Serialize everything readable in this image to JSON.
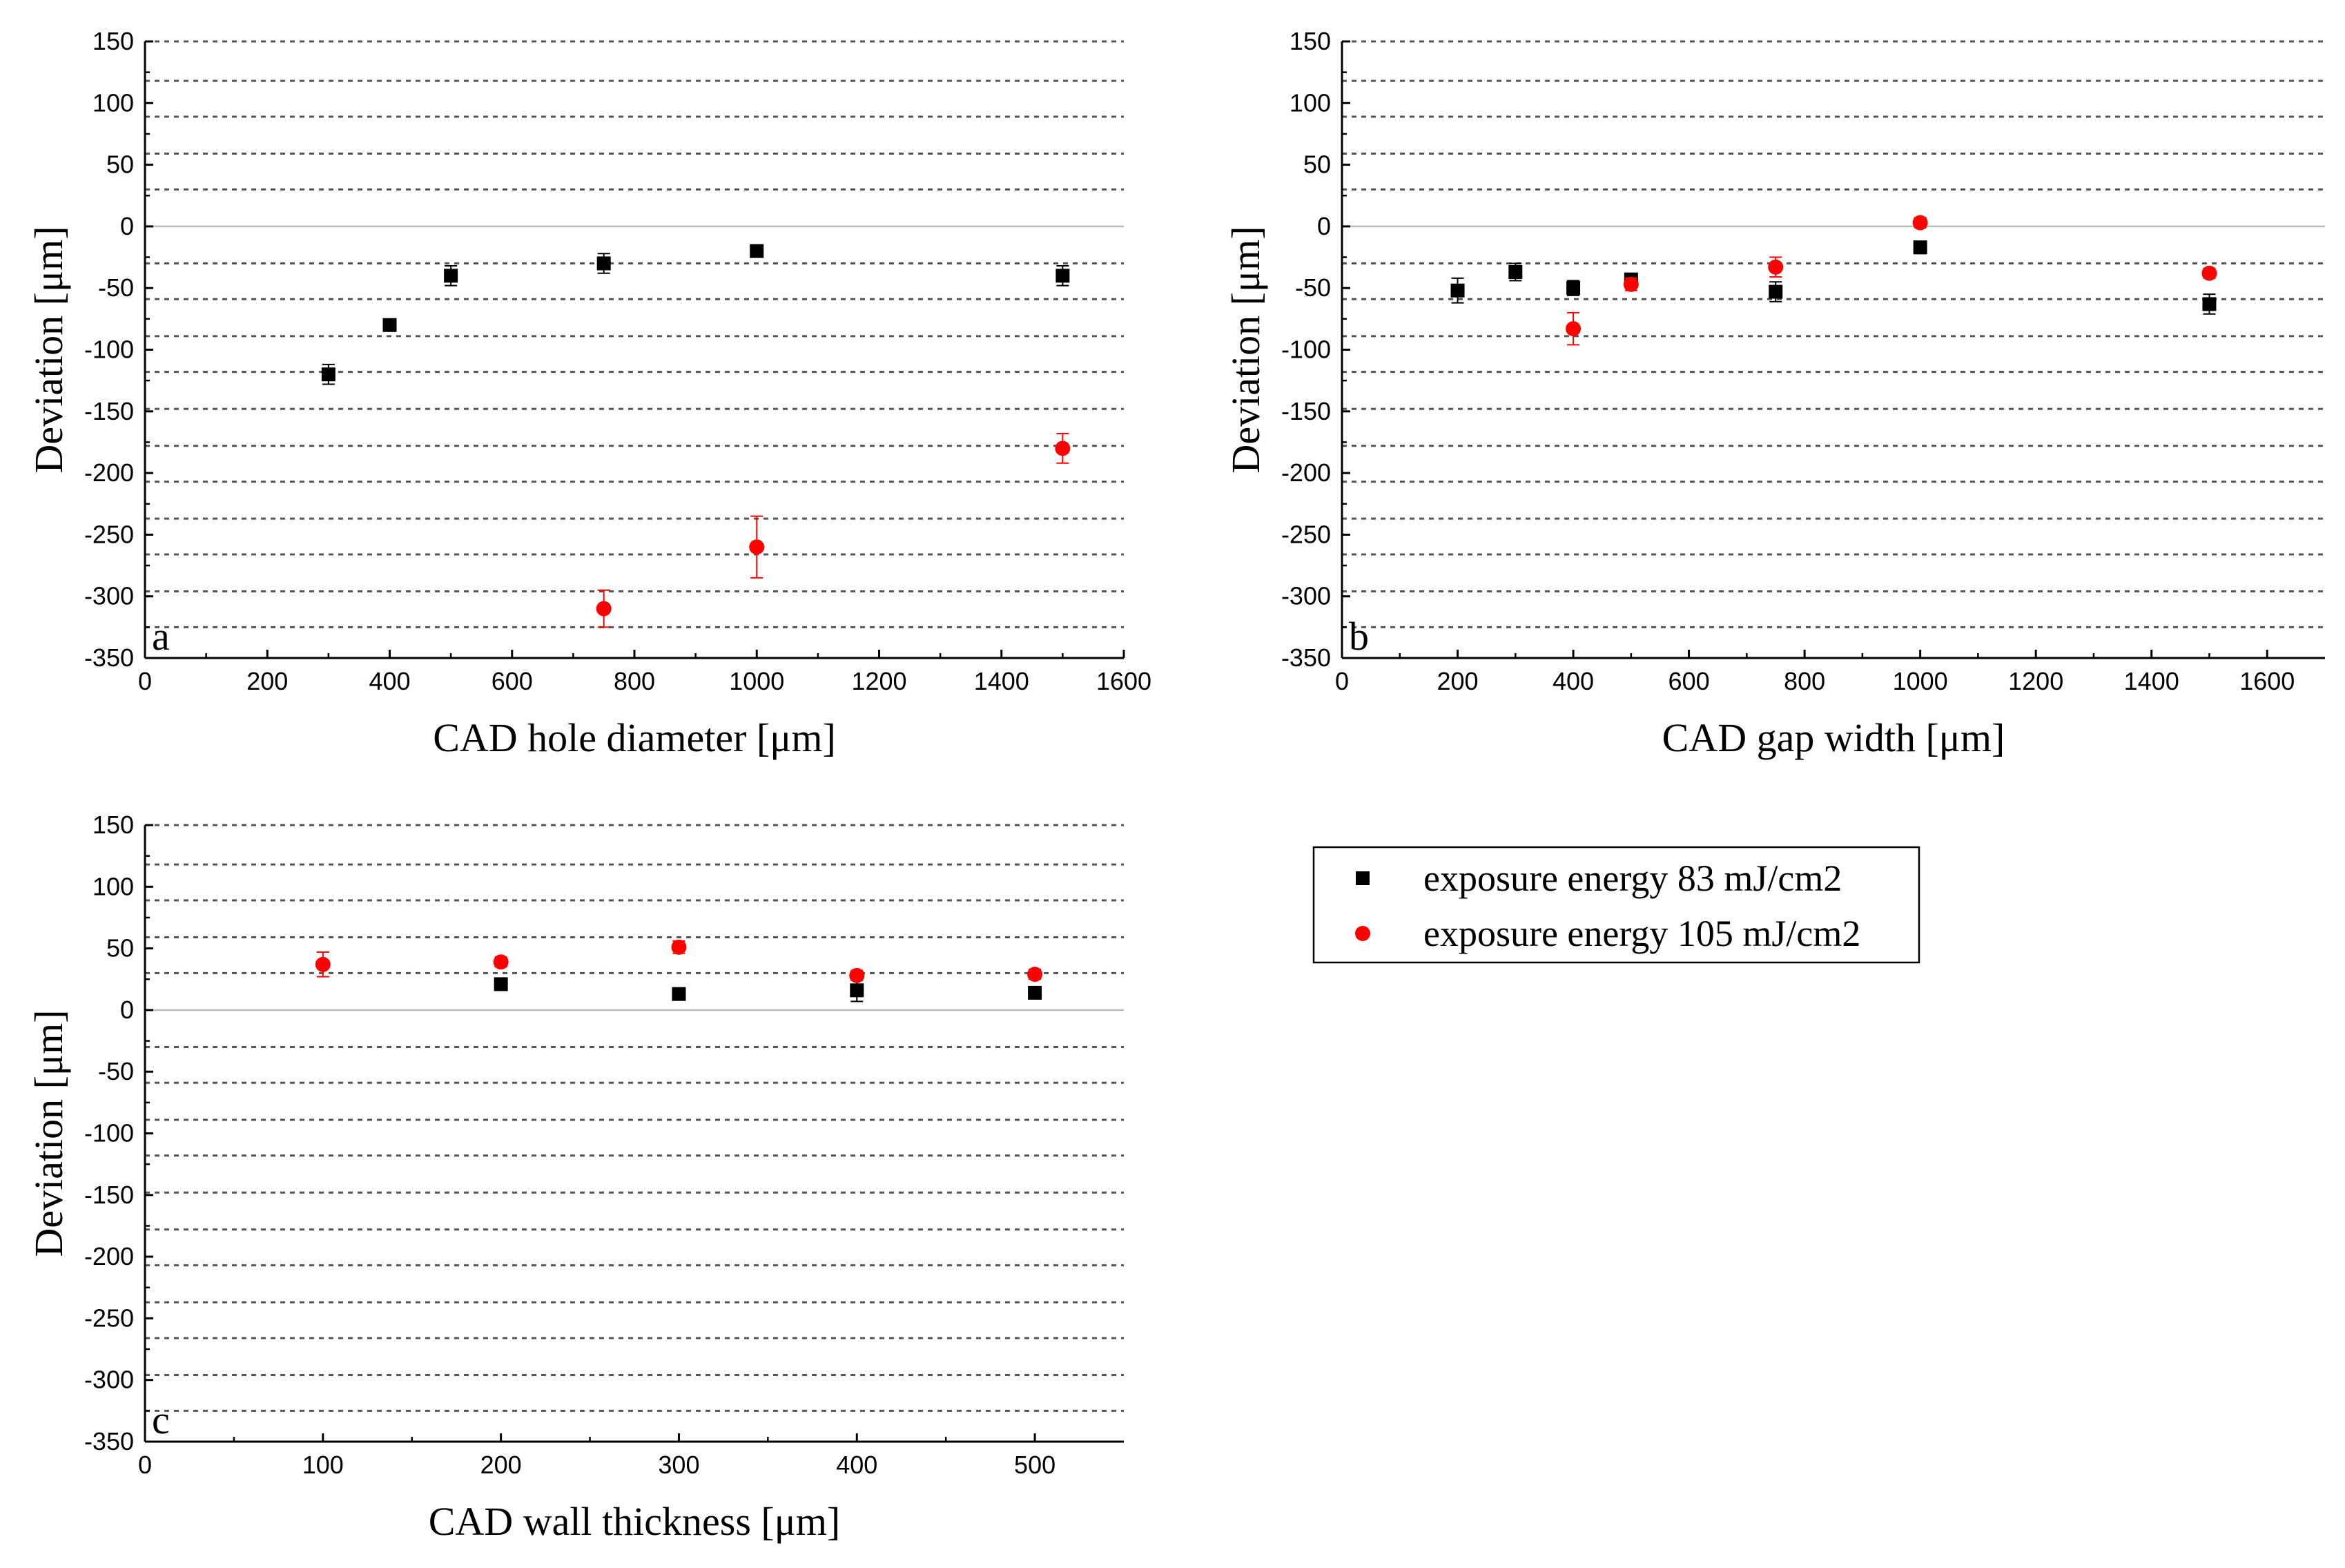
{
  "chart_data": [
    {
      "type": "scatter",
      "panel_label": "a",
      "xlabel": "CAD hole diameter [μm]",
      "ylabel": "Deviation [μm]",
      "xlim": [
        0,
        1600
      ],
      "ylim": [
        -350,
        150
      ],
      "xticks": [
        0,
        200,
        400,
        600,
        800,
        1000,
        1200,
        1400,
        1600
      ],
      "yticks": [
        150,
        100,
        50,
        0,
        -50,
        -100,
        -150,
        -200,
        -250,
        -300,
        -350
      ],
      "grid": "dashed horizontal",
      "series": [
        {
          "color": "#000000",
          "marker": "square",
          "points": [
            {
              "x": 300,
              "y": -120,
              "err": 8
            },
            {
              "x": 400,
              "y": -80,
              "err": 0
            },
            {
              "x": 500,
              "y": -40,
              "err": 8
            },
            {
              "x": 750,
              "y": -30,
              "err": 8
            },
            {
              "x": 1000,
              "y": -20,
              "err": 5
            },
            {
              "x": 1500,
              "y": -40,
              "err": 8
            }
          ]
        },
        {
          "color": "#ff0000",
          "marker": "circle",
          "points": [
            {
              "x": 750,
              "y": -310,
              "err": 15
            },
            {
              "x": 1000,
              "y": -260,
              "err": 25
            },
            {
              "x": 1500,
              "y": -180,
              "err": 12
            }
          ]
        }
      ]
    },
    {
      "type": "scatter",
      "panel_label": "b",
      "xlabel": "CAD gap width [μm]",
      "ylabel": "Deviation [μm]",
      "xlim": [
        0,
        1700
      ],
      "ylim": [
        -350,
        150
      ],
      "xticks": [
        0,
        200,
        400,
        600,
        800,
        1000,
        1200,
        1400,
        1600
      ],
      "yticks": [
        150,
        100,
        50,
        0,
        -50,
        -100,
        -150,
        -200,
        -250,
        -300,
        -350
      ],
      "grid": "dashed horizontal",
      "series": [
        {
          "color": "#000000",
          "marker": "square",
          "points": [
            {
              "x": 200,
              "y": -52,
              "err": 10
            },
            {
              "x": 300,
              "y": -37,
              "err": 7
            },
            {
              "x": 400,
              "y": -50,
              "err": 6
            },
            {
              "x": 500,
              "y": -43,
              "err": 4
            },
            {
              "x": 750,
              "y": -53,
              "err": 8
            },
            {
              "x": 1000,
              "y": -17,
              "err": 5
            },
            {
              "x": 1500,
              "y": -63,
              "err": 8
            }
          ]
        },
        {
          "color": "#ff0000",
          "marker": "circle",
          "points": [
            {
              "x": 400,
              "y": -83,
              "err": 13
            },
            {
              "x": 500,
              "y": -47,
              "err": 5
            },
            {
              "x": 750,
              "y": -33,
              "err": 8
            },
            {
              "x": 1000,
              "y": 3,
              "err": 4
            },
            {
              "x": 1500,
              "y": -38,
              "err": 4
            }
          ]
        }
      ]
    },
    {
      "type": "scatter",
      "panel_label": "c",
      "xlabel": "CAD wall thickness [μm]",
      "ylabel": "Deviation [μm]",
      "xlim": [
        0,
        550
      ],
      "ylim": [
        -350,
        150
      ],
      "xticks": [
        0,
        100,
        200,
        300,
        400,
        500
      ],
      "yticks": [
        150,
        100,
        50,
        0,
        -50,
        -100,
        -150,
        -200,
        -250,
        -300,
        -350
      ],
      "grid": "dashed horizontal",
      "series": [
        {
          "color": "#000000",
          "marker": "square",
          "points": [
            {
              "x": 200,
              "y": 21,
              "err": 4
            },
            {
              "x": 300,
              "y": 13,
              "err": 3
            },
            {
              "x": 400,
              "y": 16,
              "err": 9
            },
            {
              "x": 500,
              "y": 14,
              "err": 3
            }
          ]
        },
        {
          "color": "#ff0000",
          "marker": "circle",
          "points": [
            {
              "x": 100,
              "y": 37,
              "err": 10
            },
            {
              "x": 200,
              "y": 39,
              "err": 4
            },
            {
              "x": 300,
              "y": 51,
              "err": 5
            },
            {
              "x": 400,
              "y": 28,
              "err": 4
            },
            {
              "x": 500,
              "y": 29,
              "err": 4
            }
          ]
        }
      ]
    }
  ],
  "legend": {
    "entries": [
      {
        "label": "exposure energy 83 mJ/cm2",
        "color": "#000000",
        "marker": "square"
      },
      {
        "label": "exposure energy 105 mJ/cm2",
        "color": "#ff0000",
        "marker": "circle"
      }
    ]
  }
}
